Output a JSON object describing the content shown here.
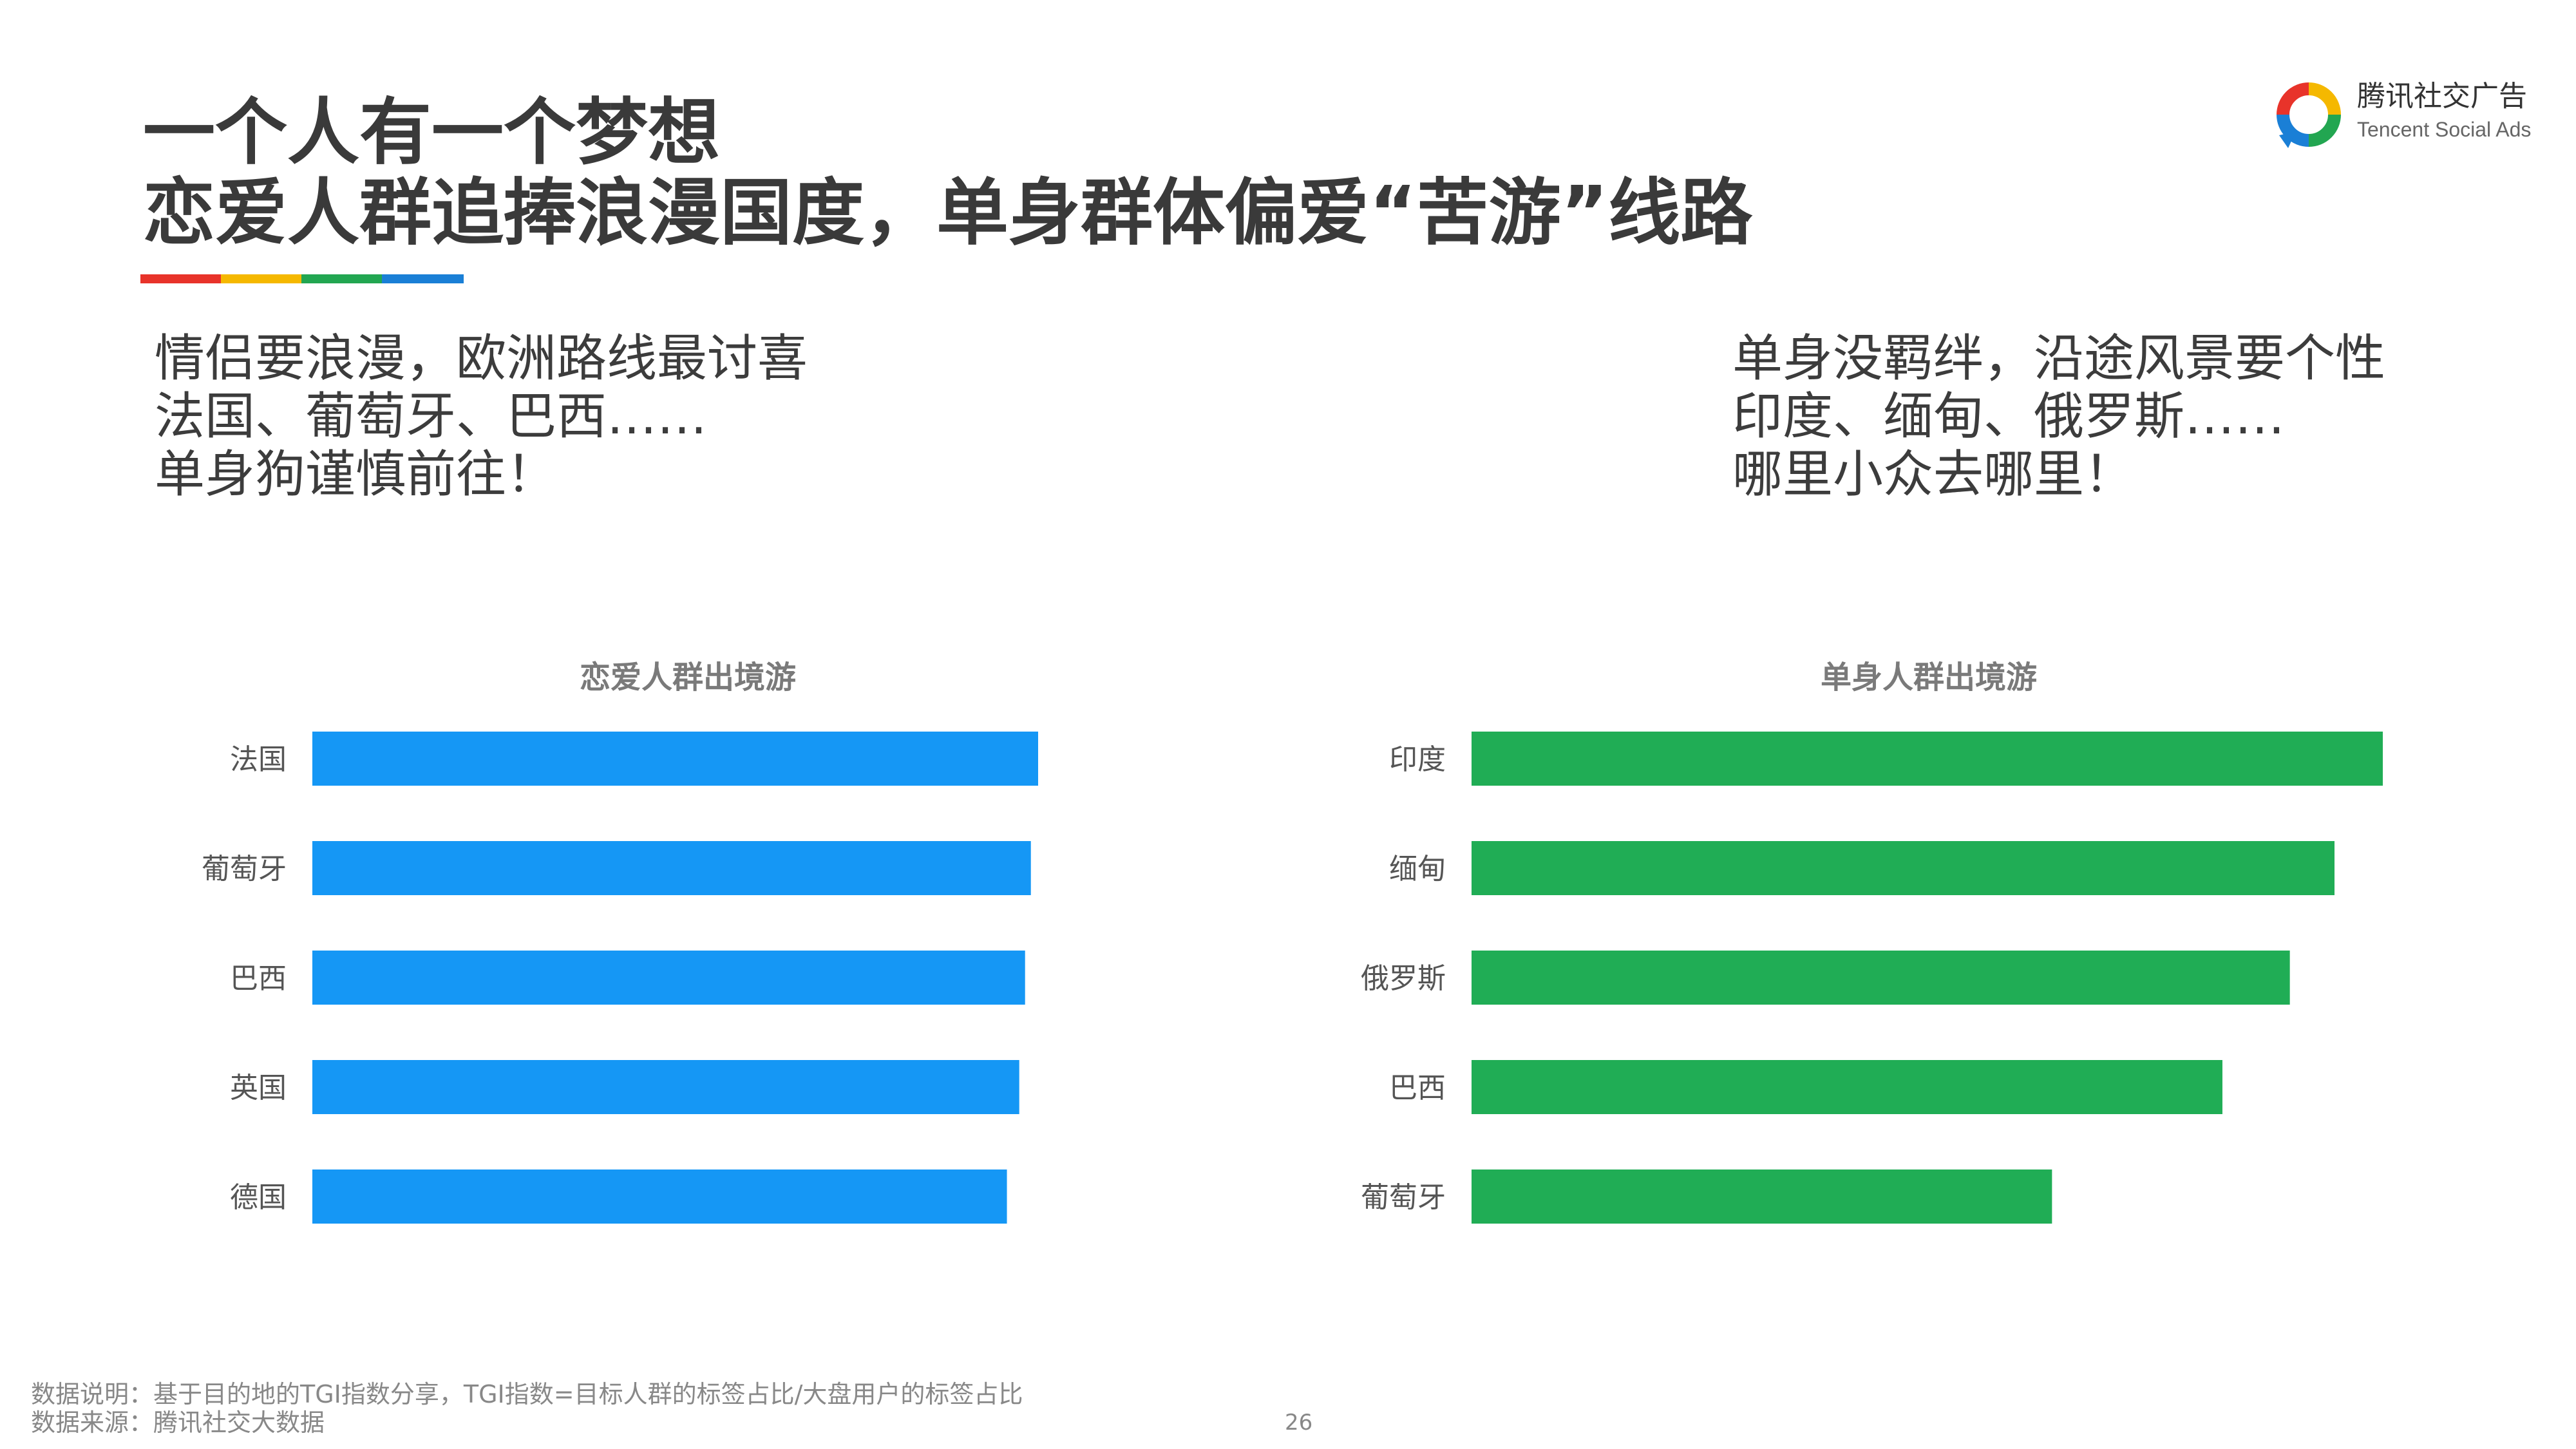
{
  "title": {
    "line1": "一个人有一个梦想",
    "line2": "恋爱人群追捧浪漫国度，单身群体偏爱“苦游”线路"
  },
  "accent_colors": [
    "#e8332a",
    "#f5b800",
    "#22a651",
    "#1a7fd6"
  ],
  "logo": {
    "cn": "腾讯社交广告",
    "en": "Tencent Social Ads",
    "colors": [
      "#e8332a",
      "#f5b800",
      "#22a651",
      "#1a7fd6"
    ]
  },
  "left_note": [
    "情侣要浪漫，欧洲路线最讨喜",
    "法国、葡萄牙、巴西……",
    "单身狗谨慎前往！"
  ],
  "right_note": [
    "单身没羁绊，沿途风景要个性",
    "印度、缅甸、俄罗斯……",
    "哪里小众去哪里！"
  ],
  "chart_data": [
    {
      "type": "bar",
      "orientation": "horizontal",
      "title": "恋爱人群出境游",
      "categories": [
        "法国",
        "葡萄牙",
        "巴西",
        "英国",
        "德国"
      ],
      "values": [
        100,
        99,
        98.2,
        97.4,
        95.7
      ],
      "xlim": [
        0,
        100
      ],
      "color": "#1597f5",
      "grid": false,
      "legend": "none"
    },
    {
      "type": "bar",
      "orientation": "horizontal",
      "title": "单身人群出境游",
      "categories": [
        "印度",
        "缅甸",
        "俄罗斯",
        "巴西",
        "葡萄牙"
      ],
      "values": [
        100,
        94.7,
        89.8,
        82.4,
        63.7
      ],
      "xlim": [
        0,
        100
      ],
      "color": "#20ad55",
      "grid": false,
      "legend": "none"
    }
  ],
  "footer": {
    "line1": "数据说明：基于目的地的TGI指数分享，TGI指数=目标人群的标签占比/大盘用户的标签占比",
    "line2": "数据来源：腾讯社交大数据",
    "page": "26"
  }
}
